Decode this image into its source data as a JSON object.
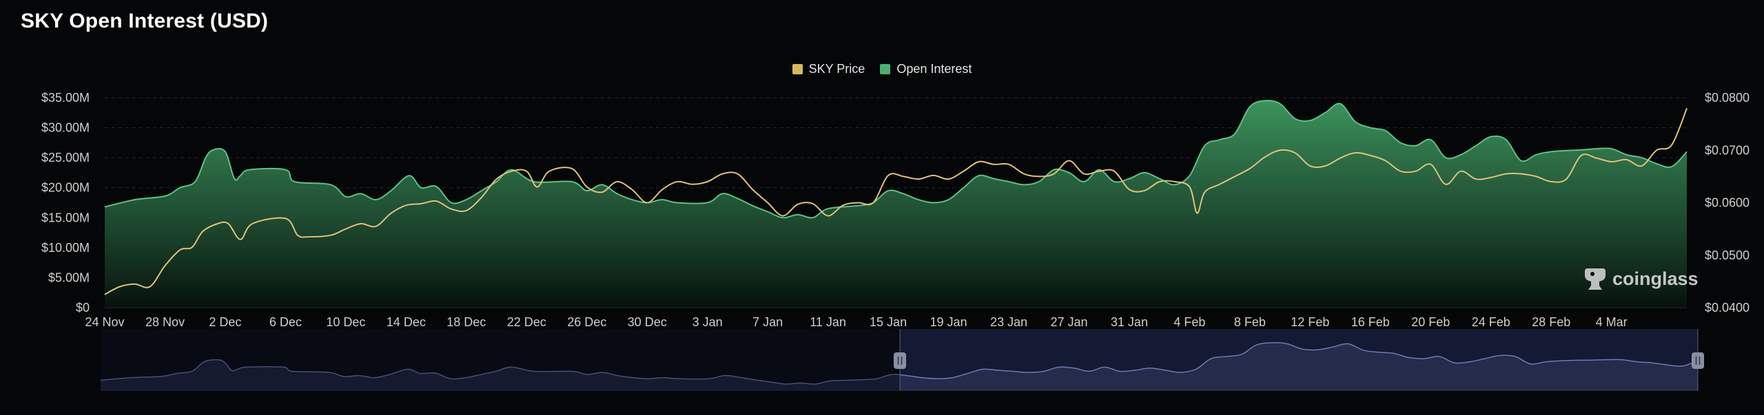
{
  "title": "SKY Open Interest (USD)",
  "legend": [
    {
      "label": "SKY Price",
      "color": "#d8b75f"
    },
    {
      "label": "Open Interest",
      "color": "#4caf70"
    }
  ],
  "watermark": "coinglass",
  "colors": {
    "background": "#050608",
    "oi_fill_top": "#3f9a60",
    "oi_line": "#5cc284",
    "price_line": "#e0c27a",
    "navigator_fill": "#2a3154",
    "navigator_line": "#6f7ab0",
    "handle": "#8a8fa3"
  },
  "navigator": {
    "range_start": "14 Jan",
    "range_end": "5 Mar"
  },
  "chart_data": {
    "type": "area",
    "x_ticks": [
      "24 Nov",
      "28 Nov",
      "2 Dec",
      "6 Dec",
      "10 Dec",
      "14 Dec",
      "18 Dec",
      "22 Dec",
      "26 Dec",
      "30 Dec",
      "3 Jan",
      "7 Jan",
      "11 Jan",
      "15 Jan",
      "19 Jan",
      "23 Jan",
      "27 Jan",
      "31 Jan",
      "4 Feb",
      "8 Feb",
      "12 Feb",
      "16 Feb",
      "20 Feb",
      "24 Feb",
      "28 Feb",
      "4 Mar"
    ],
    "y_left": {
      "ticks": [
        "$0",
        "$5.00M",
        "$10.00M",
        "$15.00M",
        "$20.00M",
        "$25.00M",
        "$30.00M",
        "$35.00M"
      ],
      "min": 0,
      "max": 35
    },
    "y_right": {
      "ticks": [
        "$0.0400",
        "$0.0500",
        "$0.0600",
        "$0.0700",
        "$0.0800"
      ],
      "min": 0.04,
      "max": 0.08
    },
    "series": [
      {
        "name": "Open Interest",
        "unit": "USD millions",
        "axis": "left",
        "points": [
          [
            0,
            16.8
          ],
          [
            2,
            18.0
          ],
          [
            4,
            18.6
          ],
          [
            5,
            20.0
          ],
          [
            6,
            21.0
          ],
          [
            6.7,
            25.0
          ],
          [
            7.2,
            26.3
          ],
          [
            8,
            26.0
          ],
          [
            8.6,
            21.5
          ],
          [
            9,
            22.0
          ],
          [
            9.6,
            23.0
          ],
          [
            12,
            23.0
          ],
          [
            12.6,
            21.0
          ],
          [
            15,
            20.5
          ],
          [
            16,
            18.5
          ],
          [
            17,
            19.0
          ],
          [
            18,
            18.0
          ],
          [
            19,
            19.5
          ],
          [
            20.2,
            22.0
          ],
          [
            21,
            20.0
          ],
          [
            22,
            20.2
          ],
          [
            23,
            17.5
          ],
          [
            24,
            18.0
          ],
          [
            25,
            19.5
          ],
          [
            26,
            21.0
          ],
          [
            27,
            23.0
          ],
          [
            28.5,
            21.0
          ],
          [
            31,
            21.0
          ],
          [
            32,
            19.5
          ],
          [
            33,
            20.5
          ],
          [
            34,
            19.0
          ],
          [
            35,
            18.0
          ],
          [
            36,
            17.5
          ],
          [
            37,
            18.0
          ],
          [
            38,
            17.5
          ],
          [
            40,
            17.5
          ],
          [
            41,
            19.0
          ],
          [
            42,
            18.2
          ],
          [
            43,
            17.0
          ],
          [
            44,
            16.0
          ],
          [
            45,
            15.0
          ],
          [
            46,
            15.5
          ],
          [
            47,
            15.0
          ],
          [
            48,
            16.5
          ],
          [
            50,
            17.0
          ],
          [
            51,
            17.5
          ],
          [
            52,
            19.5
          ],
          [
            53,
            19.0
          ],
          [
            54,
            18.0
          ],
          [
            55,
            17.5
          ],
          [
            56,
            18.0
          ],
          [
            57,
            20.0
          ],
          [
            58,
            22.0
          ],
          [
            59,
            21.5
          ],
          [
            60,
            21.0
          ],
          [
            61,
            20.5
          ],
          [
            62,
            21.0
          ],
          [
            63,
            23.0
          ],
          [
            64,
            22.5
          ],
          [
            65,
            21.0
          ],
          [
            66,
            23.0
          ],
          [
            67,
            21.0
          ],
          [
            68,
            21.5
          ],
          [
            69,
            22.5
          ],
          [
            70,
            21.5
          ],
          [
            71,
            20.5
          ],
          [
            72,
            22.0
          ],
          [
            73,
            27.0
          ],
          [
            74,
            28.0
          ],
          [
            75,
            29.0
          ],
          [
            76,
            33.5
          ],
          [
            77,
            34.5
          ],
          [
            78,
            34.0
          ],
          [
            79,
            31.5
          ],
          [
            80,
            31.2
          ],
          [
            81,
            32.5
          ],
          [
            82,
            34.0
          ],
          [
            83,
            31.0
          ],
          [
            84,
            30.0
          ],
          [
            85,
            29.5
          ],
          [
            86,
            27.5
          ],
          [
            87,
            27.0
          ],
          [
            88,
            28.0
          ],
          [
            89,
            25.0
          ],
          [
            90,
            25.5
          ],
          [
            91,
            27.0
          ],
          [
            92,
            28.5
          ],
          [
            93,
            28.0
          ],
          [
            94,
            24.5
          ],
          [
            95,
            25.5
          ],
          [
            96,
            26.0
          ],
          [
            97,
            26.2
          ],
          [
            98,
            26.3
          ],
          [
            99,
            26.5
          ],
          [
            100,
            26.5
          ],
          [
            101,
            25.5
          ],
          [
            102,
            25.0
          ],
          [
            103,
            24.0
          ],
          [
            104,
            23.5
          ],
          [
            105,
            26.0
          ]
        ]
      },
      {
        "name": "SKY Price",
        "unit": "USD",
        "axis": "right",
        "points": [
          [
            0,
            0.0425
          ],
          [
            1,
            0.044
          ],
          [
            2,
            0.0445
          ],
          [
            3,
            0.044
          ],
          [
            4,
            0.048
          ],
          [
            5,
            0.051
          ],
          [
            5.8,
            0.0515
          ],
          [
            6.5,
            0.0545
          ],
          [
            7.5,
            0.056
          ],
          [
            8.2,
            0.056
          ],
          [
            9,
            0.053
          ],
          [
            9.8,
            0.056
          ],
          [
            12,
            0.057
          ],
          [
            12.8,
            0.0538
          ],
          [
            13.5,
            0.0535
          ],
          [
            15,
            0.0538
          ],
          [
            16,
            0.055
          ],
          [
            17,
            0.056
          ],
          [
            18,
            0.0555
          ],
          [
            19,
            0.058
          ],
          [
            20,
            0.0595
          ],
          [
            21,
            0.0598
          ],
          [
            22,
            0.0603
          ],
          [
            23,
            0.0588
          ],
          [
            24,
            0.0585
          ],
          [
            25,
            0.061
          ],
          [
            26,
            0.0645
          ],
          [
            27,
            0.066
          ],
          [
            28,
            0.066
          ],
          [
            28.7,
            0.063
          ],
          [
            29.5,
            0.066
          ],
          [
            31,
            0.0665
          ],
          [
            32,
            0.063
          ],
          [
            33,
            0.062
          ],
          [
            34,
            0.064
          ],
          [
            35,
            0.0625
          ],
          [
            36,
            0.06
          ],
          [
            37,
            0.0625
          ],
          [
            38,
            0.064
          ],
          [
            39,
            0.0635
          ],
          [
            40,
            0.064
          ],
          [
            41,
            0.0655
          ],
          [
            42,
            0.0655
          ],
          [
            43,
            0.0625
          ],
          [
            44,
            0.06
          ],
          [
            45,
            0.0575
          ],
          [
            46,
            0.0597
          ],
          [
            47,
            0.0598
          ],
          [
            48,
            0.0575
          ],
          [
            49,
            0.0595
          ],
          [
            50,
            0.06
          ],
          [
            51,
            0.06
          ],
          [
            52,
            0.0652
          ],
          [
            53,
            0.065
          ],
          [
            54,
            0.0645
          ],
          [
            55,
            0.0652
          ],
          [
            56,
            0.0645
          ],
          [
            57,
            0.066
          ],
          [
            58,
            0.0678
          ],
          [
            59,
            0.0673
          ],
          [
            60,
            0.0673
          ],
          [
            61,
            0.0655
          ],
          [
            62,
            0.065
          ],
          [
            63,
            0.0655
          ],
          [
            64,
            0.068
          ],
          [
            65,
            0.0655
          ],
          [
            66,
            0.066
          ],
          [
            67,
            0.066
          ],
          [
            68,
            0.0625
          ],
          [
            69,
            0.0623
          ],
          [
            70,
            0.064
          ],
          [
            71,
            0.064
          ],
          [
            72,
            0.063
          ],
          [
            72.5,
            0.058
          ],
          [
            73,
            0.062
          ],
          [
            74,
            0.0635
          ],
          [
            75,
            0.065
          ],
          [
            76,
            0.0665
          ],
          [
            77,
            0.0687
          ],
          [
            78,
            0.07
          ],
          [
            79,
            0.0695
          ],
          [
            80,
            0.067
          ],
          [
            81,
            0.067
          ],
          [
            82,
            0.0685
          ],
          [
            83,
            0.0695
          ],
          [
            84,
            0.069
          ],
          [
            85,
            0.068
          ],
          [
            86,
            0.066
          ],
          [
            87,
            0.066
          ],
          [
            88,
            0.0673
          ],
          [
            89,
            0.0635
          ],
          [
            90,
            0.066
          ],
          [
            91,
            0.0645
          ],
          [
            92,
            0.0648
          ],
          [
            93,
            0.0655
          ],
          [
            94,
            0.0655
          ],
          [
            95,
            0.065
          ],
          [
            96,
            0.064
          ],
          [
            97,
            0.0645
          ],
          [
            98,
            0.069
          ],
          [
            99,
            0.0685
          ],
          [
            100,
            0.0678
          ],
          [
            101,
            0.0682
          ],
          [
            102,
            0.067
          ],
          [
            103,
            0.07
          ],
          [
            104,
            0.071
          ],
          [
            105,
            0.078
          ]
        ]
      }
    ],
    "grid": true,
    "legend_position": "top-center"
  }
}
